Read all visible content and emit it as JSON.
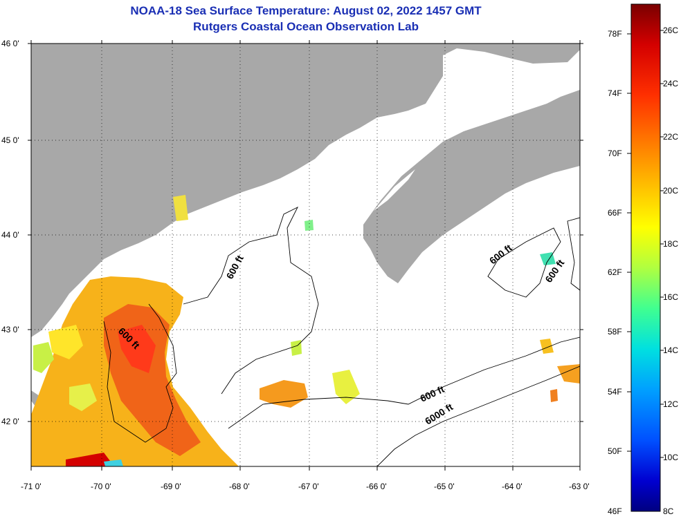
{
  "titles": {
    "line1": "NOAA-18 Sea Surface Temperature:  August 02, 2022 1457 GMT",
    "line2": "Rutgers Coastal Ocean Observation Lab"
  },
  "map": {
    "region": "Gulf of Maine",
    "lon_range": [
      -71,
      -63
    ],
    "lat_range": [
      41.5,
      46
    ],
    "lon_ticks": [
      "-71 0'",
      "-70 0'",
      "-69 0'",
      "-68 0'",
      "-67 0'",
      "-66 0'",
      "-65 0'",
      "-64 0'",
      "-63 0'"
    ],
    "lat_ticks": [
      "46 0'",
      "45 0'",
      "44 0'",
      "43 0'",
      "42 0'"
    ],
    "grid": "dotted",
    "land_color": "#a8a8a8",
    "cloud_color": "#ffffff",
    "contour_labels": [
      {
        "id": "c1",
        "text": "600 ft"
      },
      {
        "id": "c2",
        "text": "600 ft"
      },
      {
        "id": "c3",
        "text": "600 ft"
      },
      {
        "id": "c4",
        "text": "600 ft"
      },
      {
        "id": "c5",
        "text": "600 ft"
      },
      {
        "id": "c6",
        "text": "6000 ft"
      }
    ]
  },
  "colorbar": {
    "fahrenheit": [
      "78F",
      "74F",
      "70F",
      "66F",
      "62F",
      "58F",
      "54F",
      "50F",
      "46F"
    ],
    "celsius": [
      "26C",
      "24C",
      "22C",
      "20C",
      "18C",
      "16C",
      "14C",
      "12C",
      "10C",
      "8C"
    ],
    "colors": [
      "#7a0000",
      "#d40000",
      "#ff3000",
      "#ff8000",
      "#ffc000",
      "#ffff00",
      "#b0ff40",
      "#40ff90",
      "#00e0e0",
      "#00a0ff",
      "#0050ff",
      "#0000d0",
      "#000080"
    ]
  }
}
